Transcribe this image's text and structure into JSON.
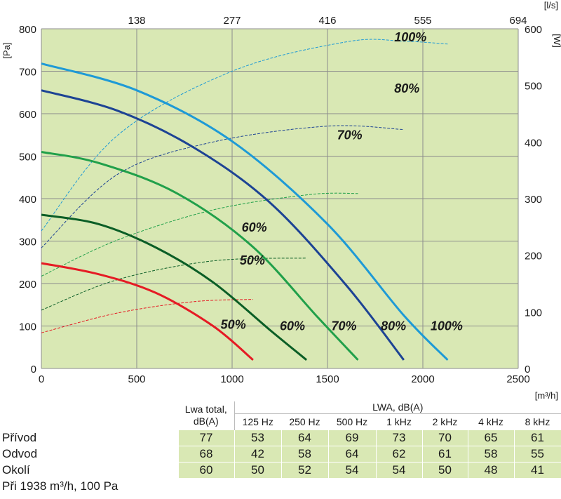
{
  "chart_data": {
    "type": "line",
    "x_bottom": {
      "unit": "[m³/h]",
      "ticks": [
        0,
        500,
        1000,
        1500,
        2000,
        2500
      ],
      "range": [
        0,
        2500
      ]
    },
    "x_top": {
      "unit": "[l/s]",
      "ticks": [
        "138",
        "277",
        "416",
        "555",
        "694"
      ]
    },
    "y_left": {
      "unit": "[Pa]",
      "ticks": [
        0,
        100,
        200,
        300,
        400,
        500,
        600,
        700,
        800
      ],
      "range": [
        0,
        800
      ]
    },
    "y_right": {
      "unit": "[W]",
      "ticks": [
        0,
        100,
        200,
        300,
        400,
        500,
        600
      ],
      "range": [
        0,
        600
      ]
    },
    "grid": true,
    "background": "#d9e8b4",
    "pressure_curves": [
      {
        "label": "50%",
        "color": "#e51b24",
        "points": [
          [
            0,
            248
          ],
          [
            300,
            222
          ],
          [
            600,
            178
          ],
          [
            900,
            100
          ],
          [
            1110,
            20
          ]
        ]
      },
      {
        "label": "60%",
        "color": "#0b5e26",
        "points": [
          [
            0,
            362
          ],
          [
            300,
            340
          ],
          [
            600,
            285
          ],
          [
            900,
            203
          ],
          [
            1200,
            90
          ],
          [
            1390,
            20
          ]
        ]
      },
      {
        "label": "70%",
        "color": "#21a04a",
        "points": [
          [
            0,
            510
          ],
          [
            300,
            484
          ],
          [
            700,
            415
          ],
          [
            1100,
            290
          ],
          [
            1450,
            120
          ],
          [
            1660,
            20
          ]
        ]
      },
      {
        "label": "80%",
        "color": "#1d4394",
        "points": [
          [
            0,
            655
          ],
          [
            400,
            607
          ],
          [
            800,
            520
          ],
          [
            1200,
            390
          ],
          [
            1600,
            195
          ],
          [
            1900,
            20
          ]
        ]
      },
      {
        "label": "100%",
        "color": "#1e9ad6",
        "points": [
          [
            0,
            718
          ],
          [
            500,
            655
          ],
          [
            1000,
            535
          ],
          [
            1500,
            340
          ],
          [
            1900,
            125
          ],
          [
            2130,
            20
          ]
        ]
      }
    ],
    "power_curves": [
      {
        "label": "100%",
        "color": "#1e9ad6",
        "points": [
          [
            0,
            243
          ],
          [
            400,
            412
          ],
          [
            1000,
            525
          ],
          [
            1600,
            577
          ],
          [
            1900,
            578
          ],
          [
            2130,
            573
          ]
        ]
      },
      {
        "label": "80%",
        "color": "#1d4394",
        "points": [
          [
            0,
            213
          ],
          [
            400,
            343
          ],
          [
            900,
            400
          ],
          [
            1500,
            428
          ],
          [
            1900,
            422
          ]
        ]
      },
      {
        "label": "70%",
        "color": "#21a04a",
        "points": [
          [
            0,
            163
          ],
          [
            400,
            227
          ],
          [
            900,
            280
          ],
          [
            1400,
            307
          ],
          [
            1660,
            309
          ]
        ]
      },
      {
        "label": "60%",
        "color": "#0b5e26",
        "points": [
          [
            0,
            103
          ],
          [
            400,
            157
          ],
          [
            900,
            190
          ],
          [
            1390,
            195
          ]
        ]
      },
      {
        "label": "50%",
        "color": "#e51b24",
        "points": [
          [
            0,
            63
          ],
          [
            400,
            98
          ],
          [
            800,
            118
          ],
          [
            1110,
            122
          ]
        ]
      }
    ],
    "annotations": [
      {
        "text": "100%",
        "x": 1850,
        "y": 770
      },
      {
        "text": "80%",
        "x": 1850,
        "y": 650
      },
      {
        "text": "70%",
        "x": 1550,
        "y": 540
      },
      {
        "text": "60%",
        "x": 1050,
        "y": 322
      },
      {
        "text": "50%",
        "x": 1040,
        "y": 245
      },
      {
        "text": "50%",
        "x": 940,
        "y": 93
      },
      {
        "text": "60%",
        "x": 1250,
        "y": 90
      },
      {
        "text": "70%",
        "x": 1520,
        "y": 90
      },
      {
        "text": "80%",
        "x": 1780,
        "y": 90
      },
      {
        "text": "100%",
        "x": 2040,
        "y": 90
      }
    ]
  },
  "table": {
    "header_total": [
      "Lwa total,",
      "dB(A)"
    ],
    "header_lwa": "LWA, dB(A)",
    "bands": [
      "125 Hz",
      "250 Hz",
      "500 Hz",
      "1 kHz",
      "2 kHz",
      "4 kHz",
      "8 kHz"
    ],
    "rows": [
      {
        "name": "Přívod",
        "total": "77",
        "values": [
          "53",
          "64",
          "69",
          "73",
          "70",
          "65",
          "61"
        ]
      },
      {
        "name": "Odvod",
        "total": "68",
        "values": [
          "42",
          "58",
          "64",
          "62",
          "61",
          "58",
          "55"
        ]
      },
      {
        "name": "Okolí",
        "total": "60",
        "values": [
          "50",
          "52",
          "54",
          "54",
          "50",
          "48",
          "41"
        ]
      }
    ],
    "footnote": "Při 1938 m³/h, 100 Pa"
  }
}
